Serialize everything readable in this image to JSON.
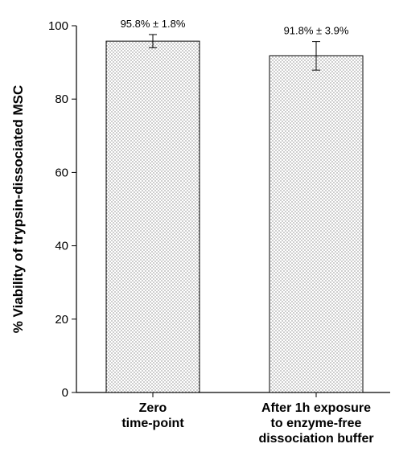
{
  "chart_data": {
    "type": "bar",
    "categories": [
      [
        "Zero",
        "time-point"
      ],
      [
        "After 1h exposure",
        "to enzyme-free",
        "dissociation buffer"
      ]
    ],
    "values": [
      95.8,
      91.8
    ],
    "errors": [
      1.8,
      3.9
    ],
    "data_labels": [
      "95.8% ± 1.8%",
      "91.8% ± 3.9%"
    ],
    "ylabel": "% Viability of trypsin-dissociated MSC",
    "ylim": [
      0,
      100
    ],
    "yticks": [
      0,
      20,
      40,
      60,
      80,
      100
    ],
    "grid": false,
    "bar_fill": "dotted"
  }
}
